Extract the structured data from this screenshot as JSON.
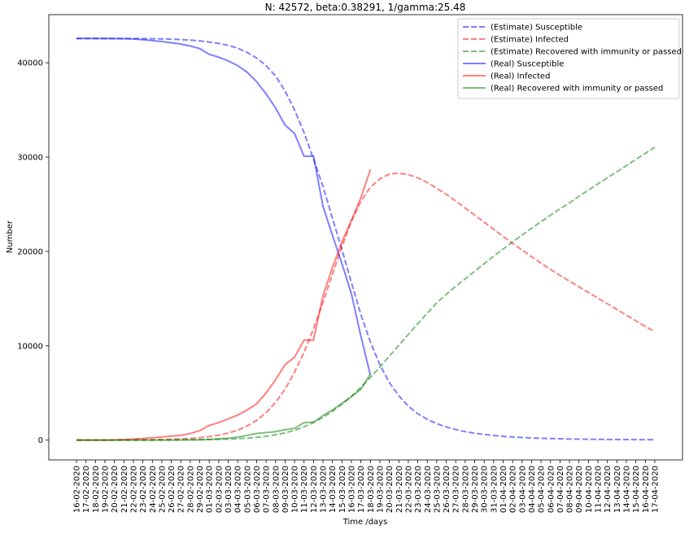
{
  "chart_data": {
    "type": "line",
    "title": "N: 42572, beta:0.38291, 1/gamma:25.48",
    "xlabel": "Time /days",
    "ylabel": "Number",
    "categories": [
      "16-02-2020",
      "17-02-2020",
      "18-02-2020",
      "19-02-2020",
      "20-02-2020",
      "21-02-2020",
      "22-02-2020",
      "23-02-2020",
      "24-02-2020",
      "25-02-2020",
      "26-02-2020",
      "27-02-2020",
      "28-02-2020",
      "29-02-2020",
      "01-03-2020",
      "02-03-2020",
      "03-03-2020",
      "04-03-2020",
      "05-03-2020",
      "06-03-2020",
      "07-03-2020",
      "08-03-2020",
      "09-03-2020",
      "10-03-2020",
      "11-03-2020",
      "12-03-2020",
      "13-03-2020",
      "14-03-2020",
      "15-03-2020",
      "16-03-2020",
      "17-03-2020",
      "18-03-2020",
      "19-03-2020",
      "20-03-2020",
      "21-03-2020",
      "22-03-2020",
      "23-03-2020",
      "24-03-2020",
      "25-03-2020",
      "26-03-2020",
      "27-03-2020",
      "28-03-2020",
      "29-03-2020",
      "30-03-2020",
      "31-03-2020",
      "01-04-2020",
      "02-04-2020",
      "03-04-2020",
      "04-04-2020",
      "05-04-2020",
      "06-04-2020",
      "07-04-2020",
      "08-04-2020",
      "09-04-2020",
      "10-04-2020",
      "11-04-2020",
      "12-04-2020",
      "13-04-2020",
      "14-04-2020",
      "15-04-2020",
      "16-04-2020",
      "17-04-2020"
    ],
    "series": [
      {
        "name": "(Estimate) Susceptible",
        "color": "#0000ff",
        "linestyle": "dashed",
        "values": [
          42572,
          42571,
          42571,
          42570,
          42569,
          42567,
          42564,
          42558,
          42548,
          42530,
          42500,
          42460,
          42400,
          42320,
          42200,
          42050,
          41850,
          41550,
          41100,
          40500,
          39700,
          38600,
          37000,
          35000,
          32600,
          29800,
          26900,
          23500,
          20200,
          16700,
          13300,
          10400,
          8000,
          6100,
          4700,
          3600,
          2800,
          2200,
          1750,
          1400,
          1120,
          900,
          730,
          600,
          490,
          400,
          330,
          275,
          230,
          195,
          165,
          140,
          120,
          105,
          92,
          80,
          71,
          63,
          57,
          51,
          46,
          42
        ]
      },
      {
        "name": "(Estimate) Infected",
        "color": "#ff0000",
        "linestyle": "dashed",
        "values": [
          1,
          3,
          5,
          8,
          11,
          15,
          22,
          31,
          44,
          62,
          90,
          125,
          180,
          260,
          370,
          520,
          750,
          1050,
          1500,
          2100,
          2900,
          4000,
          5400,
          7200,
          9300,
          11800,
          14600,
          17600,
          20500,
          23200,
          25300,
          26800,
          27700,
          28200,
          28300,
          28150,
          27800,
          27300,
          26700,
          26050,
          25350,
          24600,
          23850,
          23100,
          22350,
          21600,
          20850,
          20150,
          19450,
          18750,
          18100,
          17450,
          16850,
          16250,
          15650,
          15050,
          14450,
          13850,
          13250,
          12650,
          12050,
          11500
        ]
      },
      {
        "name": "(Estimate) Recovered with immunity or passed",
        "color": "#008000",
        "linestyle": "dashed",
        "values": [
          0,
          0,
          1,
          1,
          2,
          3,
          4,
          6,
          8,
          12,
          16,
          22,
          30,
          42,
          58,
          80,
          110,
          150,
          210,
          290,
          400,
          560,
          770,
          1050,
          1400,
          1850,
          2400,
          3050,
          3800,
          4650,
          5600,
          6650,
          7750,
          8900,
          10050,
          11200,
          12350,
          13450,
          14550,
          15450,
          16300,
          17100,
          17900,
          18700,
          19500,
          20250,
          21000,
          21750,
          22450,
          23150,
          23850,
          24500,
          25150,
          25850,
          26500,
          27150,
          27800,
          28450,
          29100,
          29750,
          30400,
          31050
        ]
      },
      {
        "name": "(Real) Susceptible",
        "color": "#0000ff",
        "linestyle": "solid",
        "values": [
          42572,
          42572,
          42572,
          42571,
          42570,
          42560,
          42520,
          42450,
          42350,
          42250,
          42120,
          41980,
          41780,
          41500,
          40900,
          40600,
          40200,
          39700,
          39000,
          38000,
          36700,
          35200,
          33400,
          32500,
          30100,
          30100,
          24800,
          21700,
          18700,
          15500,
          11000,
          6900,
          null,
          null,
          null,
          null,
          null,
          null,
          null,
          null,
          null,
          null,
          null,
          null,
          null,
          null,
          null,
          null,
          null,
          null,
          null,
          null,
          null,
          null,
          null,
          null,
          null,
          null,
          null,
          null,
          null,
          null
        ]
      },
      {
        "name": "(Real) Infected",
        "color": "#ff0000",
        "linestyle": "solid",
        "values": [
          0,
          0,
          1,
          5,
          20,
          60,
          110,
          180,
          250,
          330,
          420,
          500,
          700,
          1000,
          1550,
          1850,
          2250,
          2650,
          3200,
          3850,
          5000,
          6400,
          8000,
          8800,
          10600,
          10600,
          15300,
          18300,
          21000,
          23300,
          25700,
          28700,
          null,
          null,
          null,
          null,
          null,
          null,
          null,
          null,
          null,
          null,
          null,
          null,
          null,
          null,
          null,
          null,
          null,
          null,
          null,
          null,
          null,
          null,
          null,
          null,
          null,
          null,
          null,
          null,
          null,
          null
        ]
      },
      {
        "name": "(Real) Recovered with immunity or passed",
        "color": "#008000",
        "linestyle": "solid",
        "values": [
          0,
          0,
          0,
          0,
          0,
          0,
          0,
          1,
          2,
          3,
          5,
          10,
          20,
          40,
          80,
          130,
          200,
          320,
          500,
          700,
          800,
          900,
          1100,
          1250,
          1850,
          1900,
          2600,
          3200,
          3900,
          4600,
          5400,
          7000,
          null,
          null,
          null,
          null,
          null,
          null,
          null,
          null,
          null,
          null,
          null,
          null,
          null,
          null,
          null,
          null,
          null,
          null,
          null,
          null,
          null,
          null,
          null,
          null,
          null,
          null,
          null,
          null,
          null,
          null
        ]
      }
    ],
    "ylim": [
      -2100,
      45100
    ],
    "yticks": [
      0,
      10000,
      20000,
      30000,
      40000
    ],
    "legend": "upper right"
  }
}
